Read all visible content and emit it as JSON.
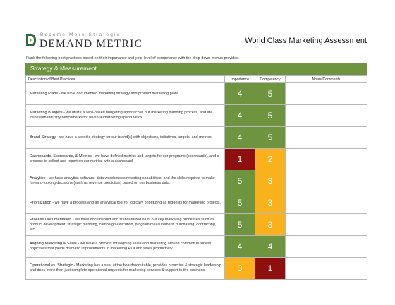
{
  "brand": {
    "tagline": "Become More Strategic",
    "name": "DEMAND METRIC"
  },
  "page_title": "World Class Marketing  Assessment",
  "instructions": "Rank the following best practices based on their importance and your level of competency with the drop-down menus provided.",
  "section_title": "Strategy & Measurement",
  "columns": {
    "description": "Description of Best Practices",
    "importance": "Importance",
    "competency": "Competency",
    "notes": "Notes/Comments"
  },
  "colors": {
    "green": "#6f9440",
    "amber": "#f9b21b",
    "red": "#8e0f0e"
  },
  "rows": [
    {
      "name": "Marketing Plans",
      "text": " - we have documented marketing strategy and product marketing plans.",
      "importance": "4",
      "competency": "5",
      "importance_color": "#6f9440",
      "competency_color": "#6f9440",
      "notes": ""
    },
    {
      "name": "Marketing Budgets",
      "text": " - we utilize a zero-based budgeting approach in our marketing planning process, and are inline with industry benchmarks for revenue/marketing spend ratios.",
      "importance": "4",
      "competency": "5",
      "importance_color": "#6f9440",
      "competency_color": "#6f9440",
      "notes": ""
    },
    {
      "name": "Brand Strategy",
      "text": " - we have a specific strategy for our brand(s) with objectives, initiatives, targets, and metrics.",
      "importance": "4",
      "competency": "5",
      "importance_color": "#6f9440",
      "competency_color": "#6f9440",
      "notes": ""
    },
    {
      "name": "Dashboards, Scorecards, & Metrics",
      "text": " - we have defined metrics and targets for our programs (scorecards), and a process to collect and report on our metrics with a dashboard.",
      "importance": "1",
      "competency": "2",
      "importance_color": "#8e0f0e",
      "competency_color": "#f9b21b",
      "notes": ""
    },
    {
      "name": "Analytics",
      "text": " - we have analytics software, data warehouses,reporting capabilities, and the skills required to make forward-looking decisions (such as revenue prediction) based on our business data.",
      "importance": "5",
      "competency": "3",
      "importance_color": "#6f9440",
      "competency_color": "#f9b21b",
      "notes": ""
    },
    {
      "name": "Prioritization",
      "text": " - we have a process and an analytical tool for logically prioritizing all requests for marketing projects.",
      "importance": "5",
      "competency": "3",
      "importance_color": "#6f9440",
      "competency_color": "#f9b21b",
      "notes": ""
    },
    {
      "name": "Process Documentation",
      "text": " - we have documented and standardized all of our key marketing processes such as product development, strategic planning, campaign execution, program measurement, purchasing, contracting, etc.",
      "importance": "5",
      "competency": "3",
      "importance_color": "#6f9440",
      "competency_color": "#f9b21b",
      "notes": ""
    },
    {
      "name": "Aligning Marketing & Sales",
      "text": " - we have a process for aligning sales and marketing around common business objectives that yields dramatic improvements in marketing ROI and sales productivity.",
      "importance": "4",
      "competency": "4",
      "importance_color": "#6f9440",
      "competency_color": "#6f9440",
      "notes": ""
    },
    {
      "name": "Operational vs. Strategic",
      "text": " - Marketing has a seat at the boardroom table, provides proactive & strategic leadership and does more than just complete operational requests for marketing services & support to the business.",
      "importance": "3",
      "competency": "1",
      "importance_color": "#f9b21b",
      "competency_color": "#8e0f0e",
      "notes": ""
    }
  ]
}
